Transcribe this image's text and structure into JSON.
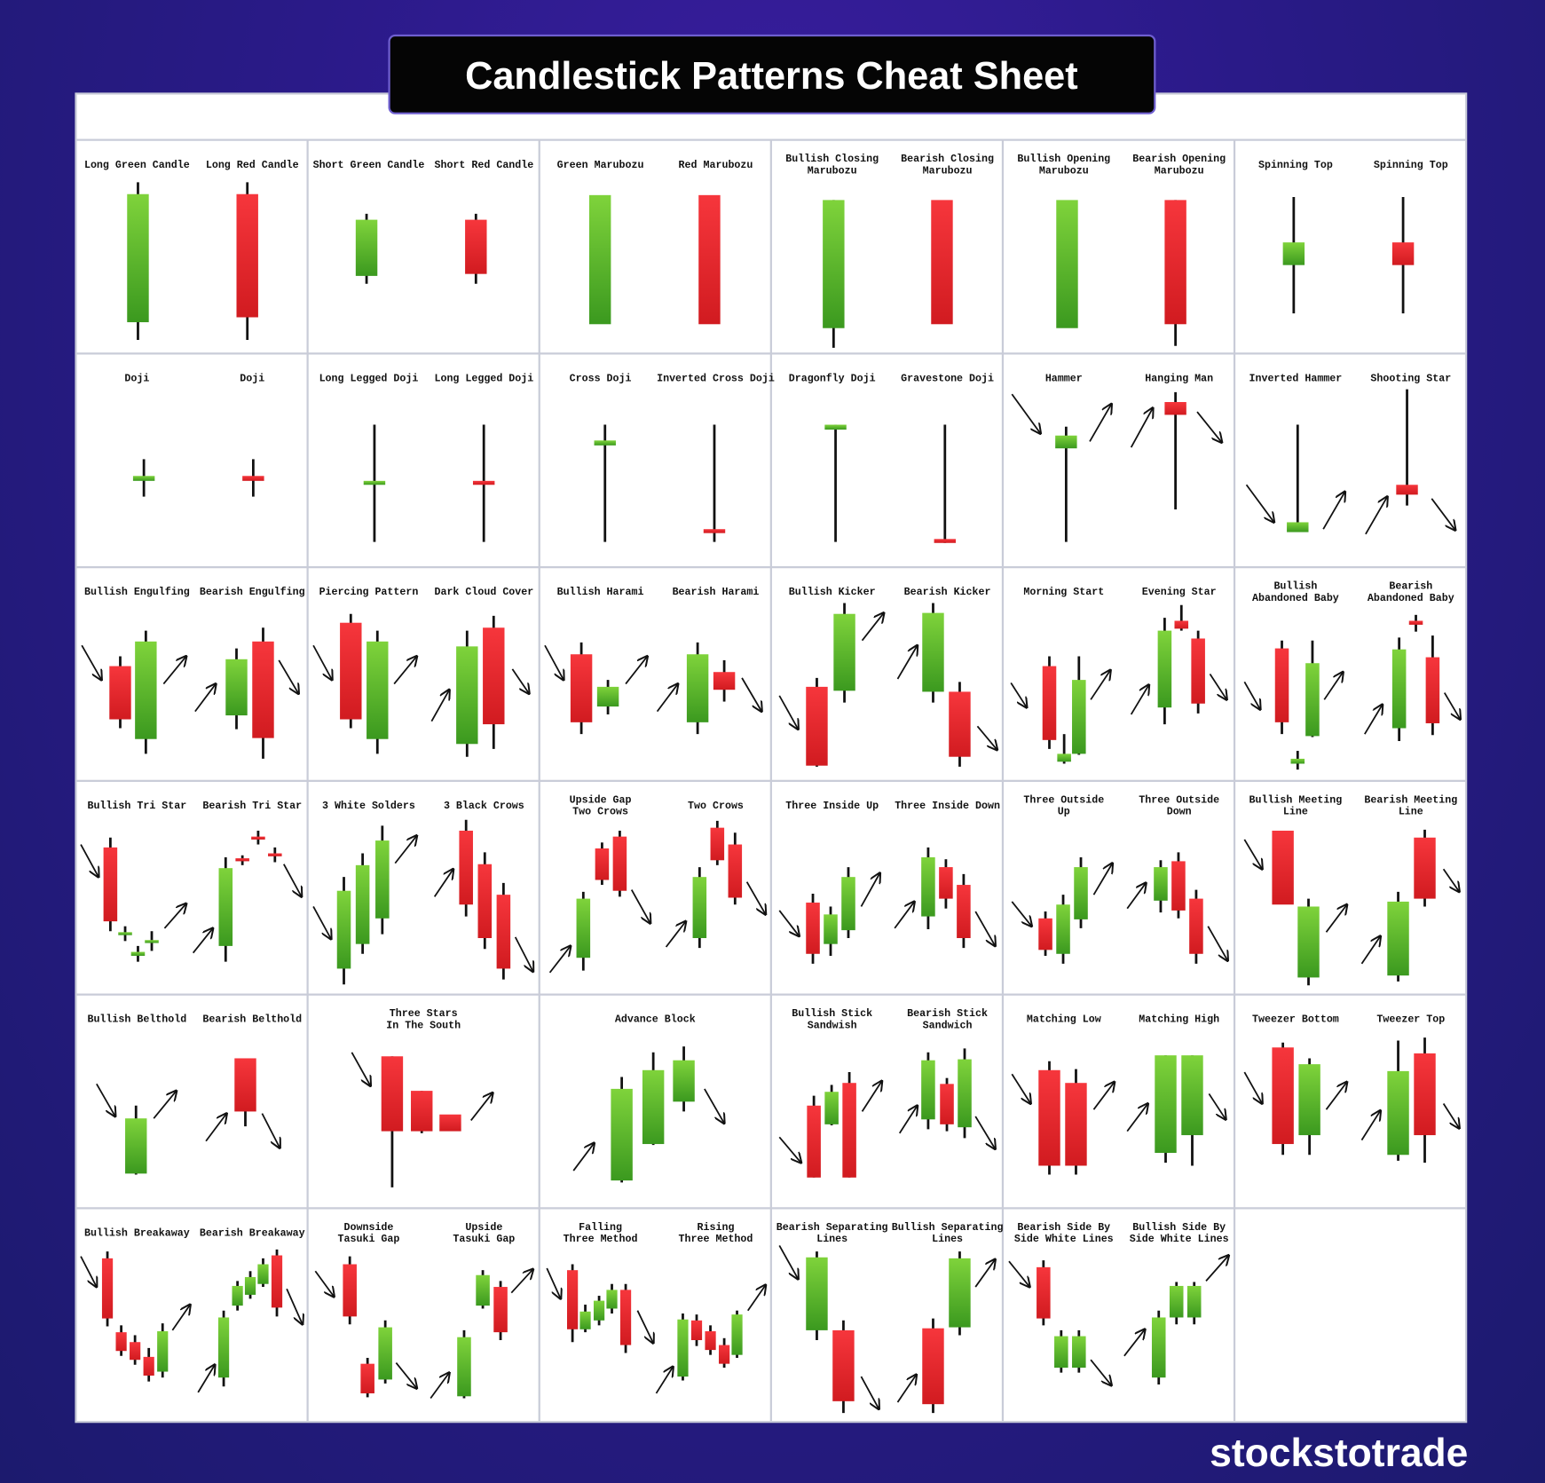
{
  "title": "Candlestick Patterns Cheat Sheet",
  "brand": "stockstotrade",
  "cells": [
    {
      "labels": [
        [
          "Long Green Candle"
        ],
        [
          "Long Red Candle"
        ]
      ]
    },
    {
      "labels": [
        [
          "Short Green Candle"
        ],
        [
          "Short Red Candle"
        ]
      ]
    },
    {
      "labels": [
        [
          "Green Marubozu"
        ],
        [
          "Red Marubozu"
        ]
      ]
    },
    {
      "labels": [
        [
          "Bullish Closing",
          "Marubozu"
        ],
        [
          "Bearish Closing",
          "Marubozu"
        ]
      ]
    },
    {
      "labels": [
        [
          "Bullish Opening",
          "Marubozu"
        ],
        [
          "Bearish Opening",
          "Marubozu"
        ]
      ]
    },
    {
      "labels": [
        [
          "Spinning Top"
        ],
        [
          "Spinning Top"
        ]
      ]
    },
    {
      "labels": [
        [
          "Doji"
        ],
        [
          "Doji"
        ]
      ]
    },
    {
      "labels": [
        [
          "Long Legged Doji"
        ],
        [
          "Long Legged Doji"
        ]
      ]
    },
    {
      "labels": [
        [
          "Cross Doji"
        ],
        [
          "Inverted Cross Doji"
        ]
      ]
    },
    {
      "labels": [
        [
          "Dragonfly Doji"
        ],
        [
          "Gravestone Doji"
        ]
      ]
    },
    {
      "labels": [
        [
          "Hammer"
        ],
        [
          "Hanging Man"
        ]
      ]
    },
    {
      "labels": [
        [
          "Inverted Hammer"
        ],
        [
          "Shooting Star"
        ]
      ]
    },
    {
      "labels": [
        [
          "Bullish Engulfing"
        ],
        [
          "Bearish Engulfing"
        ]
      ]
    },
    {
      "labels": [
        [
          "Piercing Pattern"
        ],
        [
          "Dark Cloud Cover"
        ]
      ]
    },
    {
      "labels": [
        [
          "Bullish Harami"
        ],
        [
          "Bearish Harami"
        ]
      ]
    },
    {
      "labels": [
        [
          "Bullish Kicker"
        ],
        [
          "Bearish Kicker"
        ]
      ]
    },
    {
      "labels": [
        [
          "Morning Start"
        ],
        [
          "Evening Star"
        ]
      ]
    },
    {
      "labels": [
        [
          "Bullish",
          "Abandoned Baby"
        ],
        [
          "Bearish",
          "Abandoned Baby"
        ]
      ]
    },
    {
      "labels": [
        [
          "Bullish Tri Star"
        ],
        [
          "Bearish Tri Star"
        ]
      ]
    },
    {
      "labels": [
        [
          "3 White Solders"
        ],
        [
          "3 Black Crows"
        ]
      ]
    },
    {
      "labels": [
        [
          "Upside Gap",
          "Two Crows"
        ],
        [
          "Two Crows"
        ]
      ]
    },
    {
      "labels": [
        [
          "Three Inside Up"
        ],
        [
          "Three Inside Down"
        ]
      ]
    },
    {
      "labels": [
        [
          "Three Outside",
          "Up"
        ],
        [
          "Three Outside",
          "Down"
        ]
      ]
    },
    {
      "labels": [
        [
          "Bullish Meeting",
          "Line"
        ],
        [
          "Bearish Meeting",
          "Line"
        ]
      ]
    },
    {
      "labels": [
        [
          "Bullish Belthold"
        ],
        [
          "Bearish Belthold"
        ]
      ]
    },
    {
      "labels": [
        [
          "Three Stars",
          "In The South"
        ]
      ]
    },
    {
      "labels": [
        [
          "Advance Block"
        ]
      ]
    },
    {
      "labels": [
        [
          "Bullish Stick",
          "Sandwish"
        ],
        [
          "Bearish Stick",
          "Sandwich"
        ]
      ]
    },
    {
      "labels": [
        [
          "Matching Low"
        ],
        [
          "Matching High"
        ]
      ]
    },
    {
      "labels": [
        [
          "Tweezer Bottom"
        ],
        [
          "Tweezer Top"
        ]
      ]
    },
    {
      "labels": [
        [
          "Bullish Breakaway"
        ],
        [
          "Bearish Breakaway"
        ]
      ]
    },
    {
      "labels": [
        [
          "Downside",
          "Tasuki Gap"
        ],
        [
          "Upside",
          "Tasuki Gap"
        ]
      ]
    },
    {
      "labels": [
        [
          "Falling",
          "Three Method"
        ],
        [
          "Rising",
          "Three Method"
        ]
      ]
    },
    {
      "labels": [
        [
          "Bearish Separating",
          "Lines"
        ],
        [
          "Bullish Separating",
          "Lines"
        ]
      ]
    },
    {
      "labels": [
        [
          "Bearish Side By",
          "Side White Lines"
        ],
        [
          "Bullish Side By",
          "Side White Lines"
        ]
      ]
    }
  ]
}
